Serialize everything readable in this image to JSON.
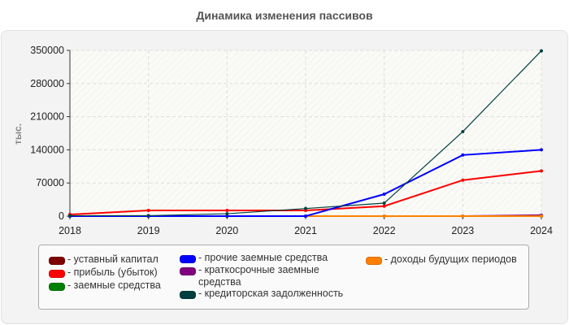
{
  "title": "Динамика изменения пассивов",
  "chart_data": {
    "type": "line",
    "title": "Динамика изменения пассивов",
    "xlabel": "",
    "ylabel": "тыс.",
    "x": [
      2018,
      2019,
      2020,
      2021,
      2022,
      2023,
      2024
    ],
    "ylim": [
      0,
      350000
    ],
    "yticks": [
      0,
      70000,
      140000,
      210000,
      280000,
      350000
    ],
    "grid": true,
    "legend_position": "bottom",
    "series": [
      {
        "name": "уставный капитал",
        "color": "#7f0000",
        "values": [
          10,
          10,
          10,
          10,
          10,
          10,
          10
        ]
      },
      {
        "name": "прибыль (убыток)",
        "color": "#ff0000",
        "values": [
          3400,
          12000,
          12000,
          12000,
          21000,
          76000,
          95500
        ]
      },
      {
        "name": "заемные средства",
        "color": "#008000",
        "values": [
          0,
          0,
          0,
          0,
          0,
          0,
          0
        ]
      },
      {
        "name": "прочие заемные средства",
        "color": "#0000ff",
        "values": [
          0,
          0,
          0,
          0,
          46300,
          129000,
          140000
        ]
      },
      {
        "name": "краткосрочные заемные средства",
        "color": "#800080",
        "values": [
          0,
          0,
          0,
          0,
          0,
          0,
          2000
        ]
      },
      {
        "name": "кредиторская задолженность",
        "color": "#004040",
        "values": [
          1000,
          1000,
          5000,
          16000,
          27400,
          178400,
          349000
        ]
      },
      {
        "name": "доходы будущих периодов",
        "color": "#ff8000",
        "values": [
          0,
          0,
          0,
          0,
          0,
          0,
          0
        ]
      }
    ]
  },
  "legend": {
    "items": [
      {
        "label": "- уставный капитал",
        "color": "#7f0000"
      },
      {
        "label": "- прибыль (убыток)",
        "color": "#ff0000"
      },
      {
        "label": "- заемные средства",
        "color": "#008000"
      },
      {
        "label": "- прочие заемные средства",
        "color": "#0000ff"
      },
      {
        "label": "- краткосрочные заемные средства",
        "color": "#800080"
      },
      {
        "label": "- кредиторская задолженность",
        "color": "#004040"
      },
      {
        "label": "- доходы будущих периодов",
        "color": "#ff8000"
      }
    ]
  }
}
